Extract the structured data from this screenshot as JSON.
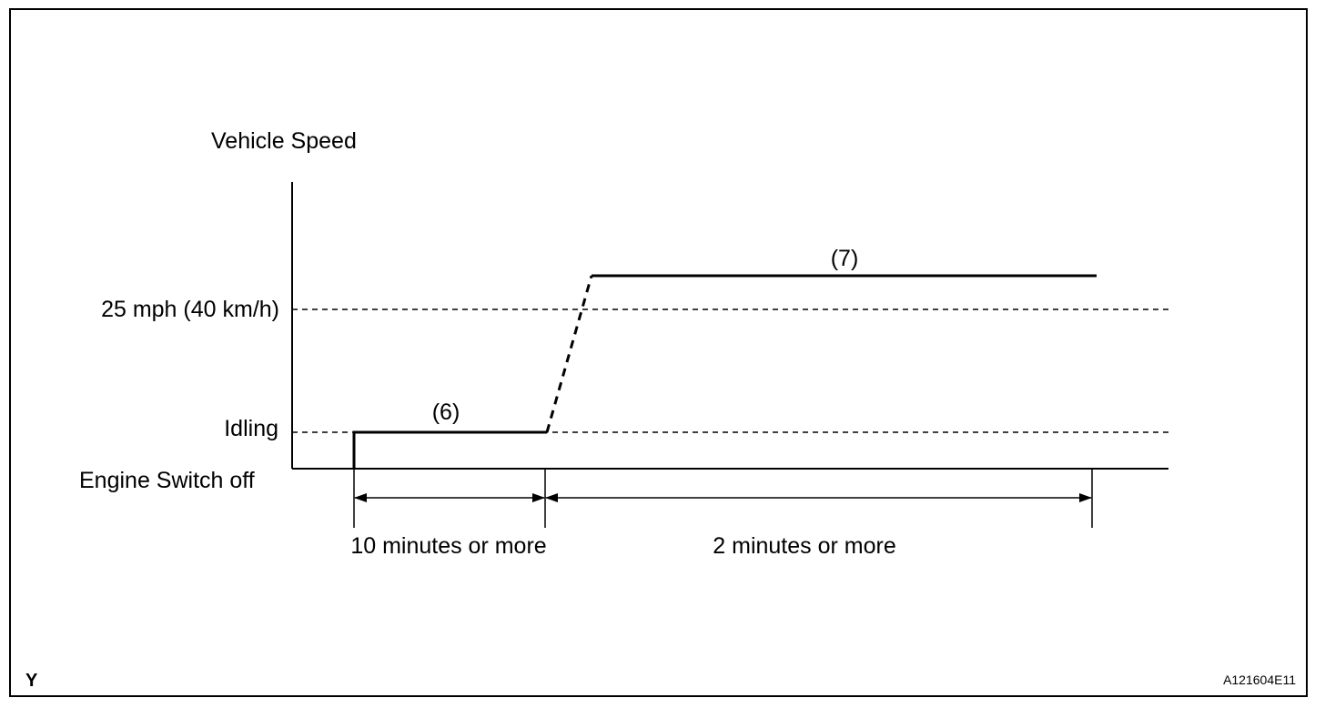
{
  "diagram": {
    "y_axis_title": "Vehicle Speed",
    "levels": {
      "speed_25": "25 mph (40 km/h)",
      "idling": "Idling",
      "engine_off": "Engine Switch off"
    },
    "steps": {
      "step6": "(6)",
      "step7": "(7)"
    },
    "durations": {
      "first": "10 minutes or more",
      "second": "2 minutes or more"
    },
    "corner_letter": "Y",
    "figure_code": "A121604E11"
  }
}
